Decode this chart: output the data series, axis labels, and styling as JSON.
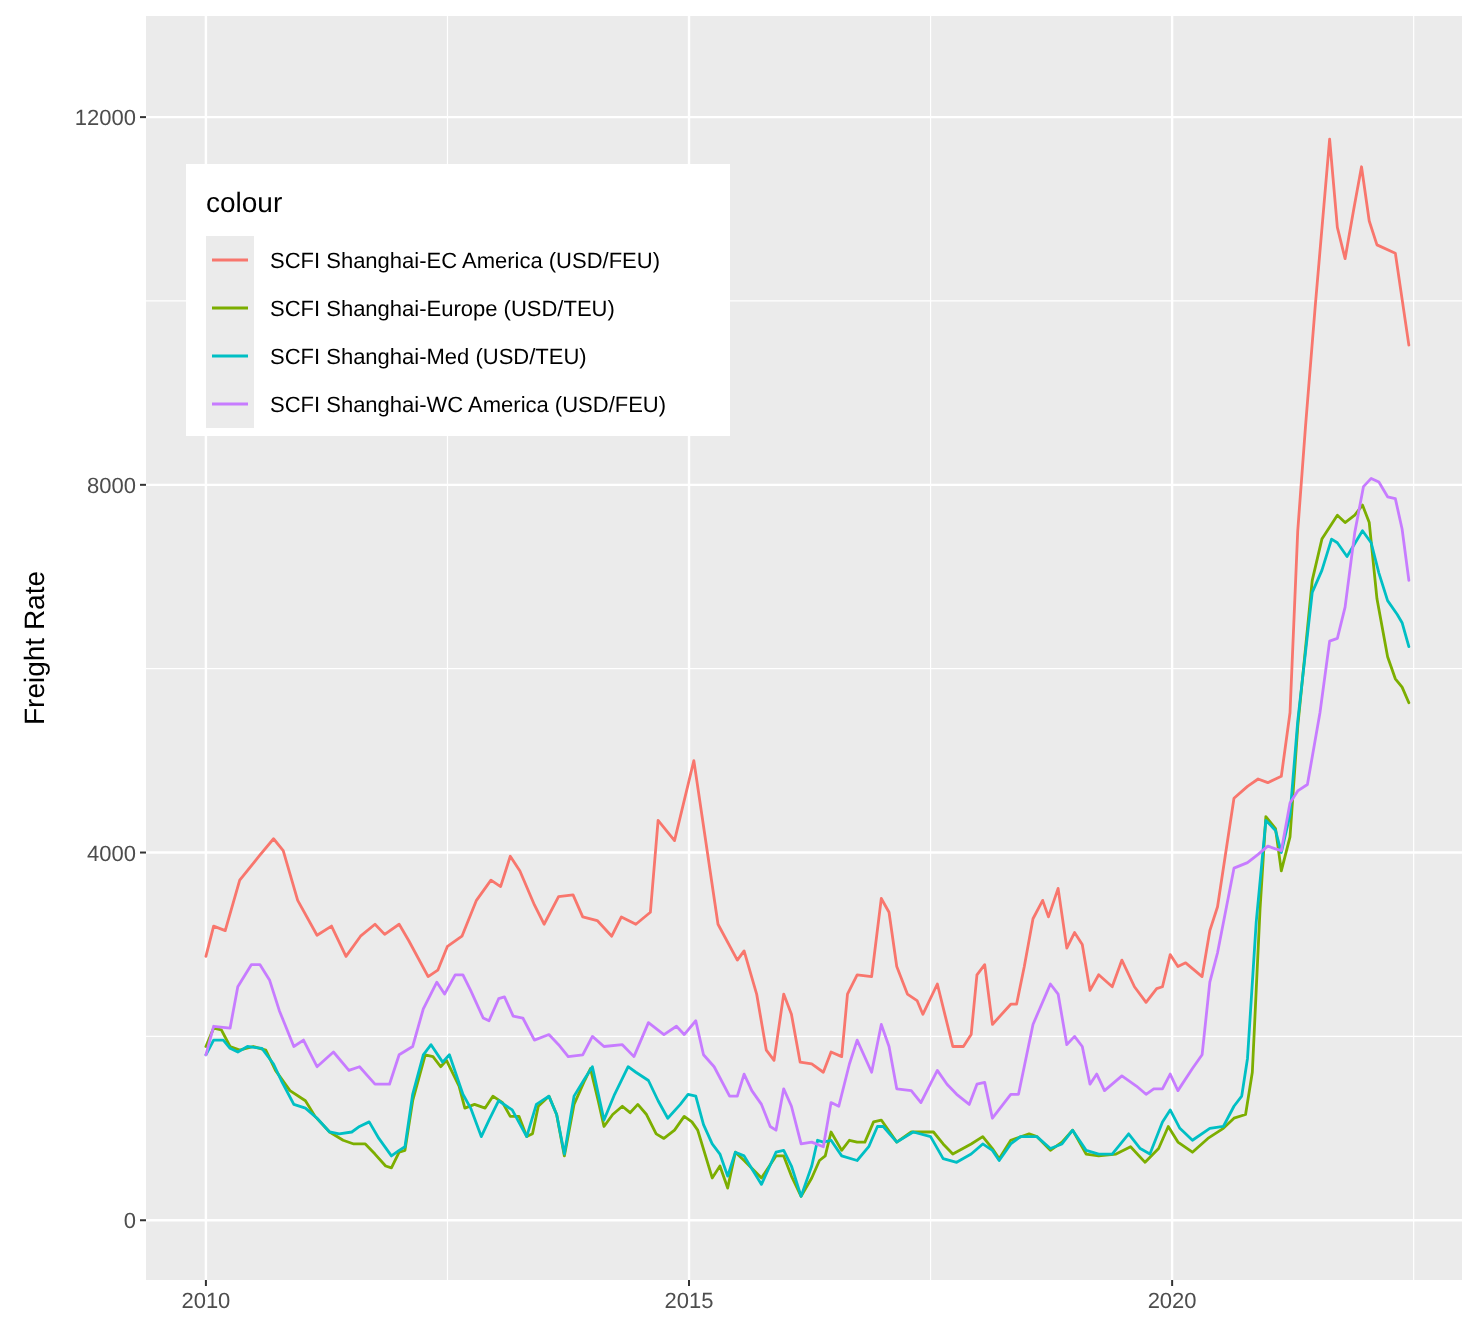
{
  "chart_data": {
    "type": "line",
    "ylabel": "Freight Rate",
    "legend_title": "colour",
    "legend": "top left",
    "grid": true,
    "line_style": "solid",
    "xlim": [
      2009.38,
      2023.0
    ],
    "ylim": [
      -650,
      13100
    ],
    "xticks": [
      2010,
      {
        "value": 2012.5,
        "label": null
      },
      2015,
      {
        "value": 2017.5,
        "label": null
      },
      2020,
      {
        "value": 2022.5,
        "label": null
      }
    ],
    "yticks": [
      0,
      {
        "value": 2000,
        "label": null
      },
      4000,
      {
        "value": 6000,
        "label": null
      },
      8000,
      {
        "value": 10000,
        "label": null
      },
      12000
    ],
    "series": [
      {
        "name": "SCFI Shanghai-EC America (USD/FEU)",
        "color": "#f8766d",
        "x": [
          2010.0,
          2010.08,
          2010.2,
          2010.35,
          2010.55,
          2010.7,
          2010.8,
          2010.95,
          2011.15,
          2011.3,
          2011.45,
          2011.6,
          2011.75,
          2011.85,
          2012.0,
          2012.1,
          2012.3,
          2012.4,
          2012.5,
          2012.65,
          2012.8,
          2012.95,
          2013.05,
          2013.15,
          2013.25,
          2013.4,
          2013.5,
          2013.65,
          2013.8,
          2013.9,
          2014.05,
          2014.2,
          2014.3,
          2014.45,
          2014.6,
          2014.68,
          2014.85,
          2015.05,
          2015.3,
          2015.5,
          2015.57,
          2015.7,
          2015.8,
          2015.88,
          2015.98,
          2016.06,
          2016.15,
          2016.27,
          2016.39,
          2016.47,
          2016.58,
          2016.64,
          2016.74,
          2016.89,
          2016.99,
          2017.07,
          2017.15,
          2017.26,
          2017.36,
          2017.42,
          2017.57,
          2017.73,
          2017.84,
          2017.92,
          2017.98,
          2018.06,
          2018.14,
          2018.33,
          2018.39,
          2018.47,
          2018.56,
          2018.66,
          2018.72,
          2018.82,
          2018.91,
          2018.99,
          2019.07,
          2019.15,
          2019.24,
          2019.38,
          2019.48,
          2019.61,
          2019.73,
          2019.84,
          2019.9,
          2019.98,
          2020.06,
          2020.14,
          2020.31,
          2020.39,
          2020.47,
          2020.64,
          2020.78,
          2020.89,
          2020.99,
          2021.07,
          2021.13,
          2021.22,
          2021.3,
          2021.38,
          2021.48,
          2021.63,
          2021.71,
          2021.79,
          2021.88,
          2021.96,
          2022.04,
          2022.12,
          2022.31,
          2022.45
        ],
        "values": [
          2870,
          3200,
          3150,
          3700,
          3960,
          4150,
          4020,
          3480,
          3100,
          3200,
          2870,
          3090,
          3220,
          3110,
          3220,
          3040,
          2650,
          2720,
          2980,
          3090,
          3480,
          3700,
          3630,
          3960,
          3800,
          3430,
          3220,
          3520,
          3540,
          3300,
          3260,
          3090,
          3300,
          3220,
          3350,
          4350,
          4130,
          5000,
          3220,
          2830,
          2930,
          2460,
          1850,
          1740,
          2460,
          2240,
          1720,
          1700,
          1610,
          1830,
          1780,
          2460,
          2670,
          2650,
          3500,
          3350,
          2760,
          2460,
          2390,
          2240,
          2570,
          1890,
          1890,
          2020,
          2670,
          2780,
          2130,
          2350,
          2350,
          2760,
          3280,
          3480,
          3300,
          3610,
          2960,
          3130,
          3000,
          2500,
          2670,
          2540,
          2830,
          2540,
          2370,
          2520,
          2540,
          2890,
          2760,
          2800,
          2650,
          3150,
          3410,
          4590,
          4720,
          4800,
          4760,
          4800,
          4830,
          5520,
          7500,
          8630,
          9930,
          11760,
          10800,
          10460,
          11000,
          11460,
          10870,
          10610,
          10520,
          9520
        ]
      },
      {
        "name": "SCFI Shanghai-Europe (USD/TEU)",
        "color": "#7cae00",
        "x": [
          2010.0,
          2010.08,
          2010.16,
          2010.25,
          2010.35,
          2010.49,
          2010.62,
          2010.72,
          2010.87,
          2011.03,
          2011.13,
          2011.28,
          2011.42,
          2011.53,
          2011.65,
          2011.75,
          2011.86,
          2011.92,
          2012.0,
          2012.06,
          2012.14,
          2012.27,
          2012.35,
          2012.43,
          2012.49,
          2012.62,
          2012.68,
          2012.78,
          2012.89,
          2012.97,
          2013.07,
          2013.15,
          2013.24,
          2013.32,
          2013.38,
          2013.44,
          2013.55,
          2013.63,
          2013.71,
          2013.81,
          2013.92,
          2013.98,
          2014.06,
          2014.12,
          2014.21,
          2014.31,
          2014.39,
          2014.47,
          2014.56,
          2014.66,
          2014.74,
          2014.85,
          2014.95,
          2015.03,
          2015.09,
          2015.24,
          2015.32,
          2015.4,
          2015.48,
          2015.57,
          2015.75,
          2015.9,
          2015.98,
          2016.06,
          2016.16,
          2016.27,
          2016.35,
          2016.41,
          2016.47,
          2016.58,
          2016.66,
          2016.74,
          2016.82,
          2016.91,
          2016.99,
          2017.15,
          2017.3,
          2017.53,
          2017.63,
          2017.73,
          2017.92,
          2018.04,
          2018.14,
          2018.21,
          2018.33,
          2018.52,
          2018.6,
          2018.74,
          2018.86,
          2018.97,
          2019.11,
          2019.24,
          2019.42,
          2019.57,
          2019.72,
          2019.86,
          2019.96,
          2020.06,
          2020.21,
          2020.37,
          2020.53,
          2020.64,
          2020.76,
          2020.83,
          2020.91,
          2020.97,
          2021.07,
          2021.13,
          2021.22,
          2021.3,
          2021.45,
          2021.55,
          2021.71,
          2021.79,
          2021.89,
          2021.97,
          2022.04,
          2022.12,
          2022.23,
          2022.31,
          2022.38,
          2022.45
        ],
        "values": [
          1890,
          2090,
          2070,
          1890,
          1850,
          1890,
          1850,
          1630,
          1410,
          1300,
          1130,
          960,
          870,
          830,
          830,
          720,
          590,
          570,
          740,
          760,
          1300,
          1800,
          1780,
          1670,
          1740,
          1460,
          1220,
          1260,
          1220,
          1350,
          1280,
          1130,
          1130,
          910,
          940,
          1240,
          1350,
          1150,
          700,
          1260,
          1520,
          1650,
          1300,
          1020,
          1150,
          1240,
          1170,
          1260,
          1150,
          940,
          890,
          980,
          1130,
          1070,
          980,
          460,
          590,
          350,
          740,
          650,
          460,
          700,
          700,
          480,
          260,
          460,
          650,
          700,
          960,
          760,
          870,
          850,
          850,
          1070,
          1090,
          850,
          960,
          960,
          830,
          720,
          830,
          910,
          780,
          670,
          870,
          940,
          910,
          760,
          850,
          980,
          720,
          700,
          720,
          800,
          630,
          780,
          1020,
          850,
          740,
          890,
          1000,
          1110,
          1150,
          1610,
          3390,
          4390,
          4260,
          3800,
          4170,
          5370,
          6960,
          7410,
          7670,
          7590,
          7670,
          7780,
          7590,
          6760,
          6130,
          5890,
          5800,
          5630
        ]
      },
      {
        "name": "SCFI Shanghai-Med (USD/TEU)",
        "color": "#00bfc4",
        "x": [
          2010.0,
          2010.08,
          2010.18,
          2010.25,
          2010.33,
          2010.43,
          2010.58,
          2010.7,
          2010.78,
          2010.91,
          2011.03,
          2011.15,
          2011.28,
          2011.38,
          2011.51,
          2011.59,
          2011.69,
          2011.79,
          2011.92,
          2012.0,
          2012.06,
          2012.14,
          2012.25,
          2012.33,
          2012.45,
          2012.52,
          2012.66,
          2012.74,
          2012.85,
          2012.93,
          2013.03,
          2013.17,
          2013.32,
          2013.42,
          2013.55,
          2013.63,
          2013.71,
          2013.81,
          2013.92,
          2014.0,
          2014.12,
          2014.23,
          2014.37,
          2014.45,
          2014.58,
          2014.68,
          2014.78,
          2014.91,
          2014.99,
          2015.07,
          2015.15,
          2015.24,
          2015.32,
          2015.4,
          2015.48,
          2015.57,
          2015.75,
          2015.9,
          2015.98,
          2016.06,
          2016.16,
          2016.27,
          2016.33,
          2016.39,
          2016.47,
          2016.58,
          2016.74,
          2016.86,
          2016.95,
          2017.01,
          2017.15,
          2017.32,
          2017.5,
          2017.63,
          2017.77,
          2017.92,
          2018.04,
          2018.14,
          2018.21,
          2018.33,
          2018.43,
          2018.6,
          2018.74,
          2018.86,
          2018.97,
          2019.11,
          2019.24,
          2019.38,
          2019.55,
          2019.67,
          2019.77,
          2019.9,
          2019.98,
          2020.08,
          2020.21,
          2020.39,
          2020.53,
          2020.64,
          2020.72,
          2020.78,
          2020.87,
          2020.97,
          2021.07,
          2021.13,
          2021.22,
          2021.3,
          2021.45,
          2021.55,
          2021.65,
          2021.71,
          2021.81,
          2021.97,
          2022.06,
          2022.14,
          2022.23,
          2022.33,
          2022.38,
          2022.45
        ],
        "values": [
          1800,
          1960,
          1960,
          1870,
          1830,
          1890,
          1870,
          1700,
          1520,
          1260,
          1220,
          1110,
          960,
          940,
          960,
          1020,
          1070,
          890,
          700,
          760,
          800,
          1370,
          1800,
          1910,
          1720,
          1800,
          1370,
          1220,
          910,
          1090,
          1300,
          1200,
          910,
          1260,
          1350,
          1150,
          720,
          1350,
          1540,
          1670,
          1090,
          1370,
          1670,
          1610,
          1520,
          1300,
          1110,
          1260,
          1370,
          1350,
          1040,
          830,
          720,
          480,
          740,
          700,
          390,
          740,
          760,
          590,
          260,
          590,
          870,
          850,
          870,
          700,
          650,
          800,
          1020,
          1020,
          850,
          960,
          910,
          670,
          630,
          720,
          830,
          760,
          650,
          830,
          910,
          910,
          780,
          830,
          980,
          760,
          720,
          720,
          940,
          780,
          720,
          1070,
          1200,
          1000,
          870,
          1000,
          1020,
          1240,
          1350,
          1760,
          3240,
          4350,
          4240,
          4000,
          4410,
          5430,
          6830,
          7070,
          7410,
          7370,
          7220,
          7500,
          7370,
          7040,
          6740,
          6590,
          6500,
          6240
        ]
      },
      {
        "name": "SCFI Shanghai-WC America (USD/FEU)",
        "color": "#c77cff",
        "x": [
          2010.0,
          2010.08,
          2010.25,
          2010.33,
          2010.47,
          2010.56,
          2010.66,
          2010.76,
          2010.91,
          2011.01,
          2011.15,
          2011.32,
          2011.48,
          2011.59,
          2011.75,
          2011.9,
          2012.0,
          2012.14,
          2012.25,
          2012.39,
          2012.47,
          2012.58,
          2012.66,
          2012.74,
          2012.87,
          2012.93,
          2013.03,
          2013.09,
          2013.18,
          2013.28,
          2013.4,
          2013.55,
          2013.65,
          2013.75,
          2013.9,
          2014.0,
          2014.12,
          2014.31,
          2014.43,
          2014.58,
          2014.74,
          2014.87,
          2014.95,
          2015.07,
          2015.15,
          2015.26,
          2015.42,
          2015.5,
          2015.57,
          2015.65,
          2015.75,
          2015.84,
          2015.9,
          2015.98,
          2016.06,
          2016.16,
          2016.27,
          2016.39,
          2016.47,
          2016.55,
          2016.66,
          2016.74,
          2016.89,
          2016.99,
          2017.07,
          2017.15,
          2017.3,
          2017.4,
          2017.57,
          2017.67,
          2017.77,
          2017.9,
          2017.98,
          2018.06,
          2018.14,
          2018.33,
          2018.41,
          2018.56,
          2018.74,
          2018.82,
          2018.91,
          2018.99,
          2019.07,
          2019.15,
          2019.22,
          2019.3,
          2019.48,
          2019.63,
          2019.73,
          2019.81,
          2019.9,
          2019.98,
          2020.06,
          2020.21,
          2020.31,
          2020.39,
          2020.47,
          2020.64,
          2020.78,
          2020.89,
          2020.99,
          2021.07,
          2021.13,
          2021.22,
          2021.3,
          2021.4,
          2021.53,
          2021.63,
          2021.71,
          2021.79,
          2021.89,
          2021.98,
          2022.06,
          2022.14,
          2022.23,
          2022.31,
          2022.38,
          2022.45
        ],
        "values": [
          1800,
          2110,
          2090,
          2540,
          2780,
          2780,
          2610,
          2280,
          1890,
          1960,
          1670,
          1830,
          1630,
          1670,
          1480,
          1480,
          1800,
          1890,
          2300,
          2590,
          2460,
          2670,
          2670,
          2500,
          2200,
          2170,
          2410,
          2430,
          2220,
          2200,
          1960,
          2020,
          1910,
          1780,
          1800,
          2000,
          1890,
          1910,
          1780,
          2150,
          2020,
          2110,
          2020,
          2170,
          1800,
          1670,
          1350,
          1350,
          1590,
          1410,
          1260,
          1020,
          980,
          1430,
          1240,
          830,
          850,
          800,
          1280,
          1240,
          1700,
          1960,
          1610,
          2130,
          1890,
          1430,
          1410,
          1280,
          1630,
          1480,
          1370,
          1260,
          1480,
          1500,
          1110,
          1370,
          1370,
          2130,
          2570,
          2460,
          1910,
          2000,
          1890,
          1480,
          1590,
          1410,
          1570,
          1460,
          1370,
          1430,
          1430,
          1590,
          1410,
          1650,
          1800,
          2590,
          2910,
          3830,
          3890,
          3980,
          4070,
          4040,
          4020,
          4540,
          4670,
          4740,
          5520,
          6300,
          6330,
          6670,
          7480,
          7980,
          8070,
          8030,
          7870,
          7850,
          7520,
          6960
        ]
      }
    ]
  }
}
